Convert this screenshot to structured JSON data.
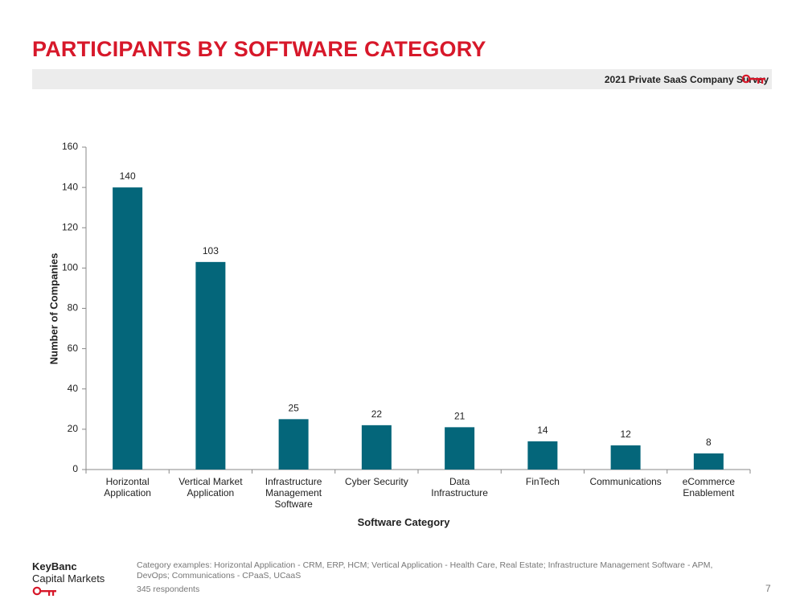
{
  "header": {
    "title": "PARTICIPANTS BY SOFTWARE CATEGORY",
    "subtitle": "2021 Private SaaS Company Survey"
  },
  "chart_data": {
    "type": "bar",
    "x_label": "Software Category",
    "y_label": "Number of Companies",
    "categories": [
      "Horizontal Application",
      "Vertical Market Application",
      "Infrastructure Management Software",
      "Cyber Security",
      "Data Infrastructure",
      "FinTech",
      "Communications",
      "eCommerce Enablement"
    ],
    "values": [
      140,
      103,
      25,
      22,
      21,
      14,
      12,
      8
    ],
    "color": "#04667a",
    "ylim": [
      0,
      160
    ],
    "yticks": [
      0,
      20,
      40,
      60,
      80,
      100,
      120,
      140,
      160
    ]
  },
  "footer": {
    "brand": "KeyBanc",
    "brand_sub": "Capital Markets",
    "note": "Category examples: Horizontal Application - CRM, ERP, HCM; Vertical Application - Health Care, Real Estate; Infrastructure Management Software - APM, DevOps; Communications - CPaaS, UCaaS",
    "respondents": "345 respondents",
    "page": "7"
  }
}
